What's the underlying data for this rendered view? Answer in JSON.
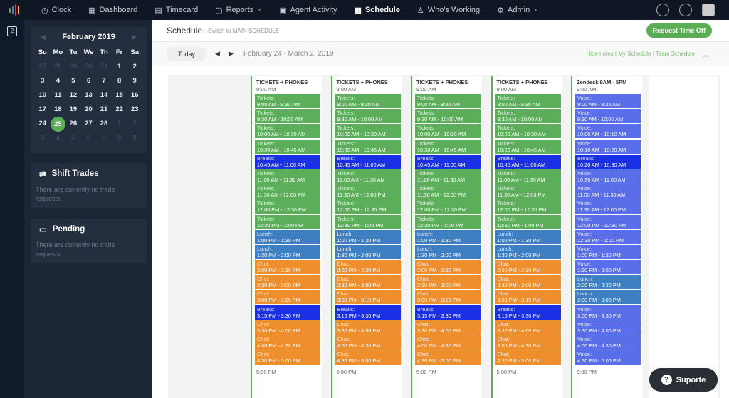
{
  "nav": {
    "items": [
      {
        "label": "Clock",
        "icon": "clock-icon",
        "glyph": "◷"
      },
      {
        "label": "Dashboard",
        "icon": "dashboard-icon",
        "glyph": "▦"
      },
      {
        "label": "Timecard",
        "icon": "timecard-icon",
        "glyph": "▤"
      },
      {
        "label": "Reports",
        "icon": "folder-icon",
        "glyph": "▢",
        "caret": true
      },
      {
        "label": "Agent Activity",
        "icon": "activity-icon",
        "glyph": "▣"
      },
      {
        "label": "Schedule",
        "icon": "calendar-icon",
        "glyph": "▩",
        "active": true
      },
      {
        "label": "Who's Working",
        "icon": "users-icon",
        "glyph": "♙"
      },
      {
        "label": "Admin",
        "icon": "gear-icon",
        "glyph": "⚙",
        "caret": true
      }
    ]
  },
  "calendar": {
    "month": "February 2019",
    "dow": [
      "Su",
      "Mo",
      "Tu",
      "We",
      "Th",
      "Fr",
      "Sa"
    ],
    "days": [
      [
        "27",
        1
      ],
      [
        "28",
        1
      ],
      [
        "29",
        1
      ],
      [
        "30",
        1
      ],
      [
        "31",
        1
      ],
      [
        "1",
        0
      ],
      [
        "2",
        0
      ],
      [
        "3",
        0
      ],
      [
        "4",
        0
      ],
      [
        "5",
        0
      ],
      [
        "6",
        0
      ],
      [
        "7",
        0
      ],
      [
        "8",
        0
      ],
      [
        "9",
        0
      ],
      [
        "10",
        0
      ],
      [
        "11",
        0
      ],
      [
        "12",
        0
      ],
      [
        "13",
        0
      ],
      [
        "14",
        0
      ],
      [
        "15",
        0
      ],
      [
        "16",
        0
      ],
      [
        "17",
        0
      ],
      [
        "18",
        0
      ],
      [
        "19",
        0
      ],
      [
        "20",
        0
      ],
      [
        "21",
        0
      ],
      [
        "22",
        0
      ],
      [
        "23",
        0
      ],
      [
        "24",
        0
      ],
      [
        "25",
        2
      ],
      [
        "26",
        0
      ],
      [
        "27",
        0
      ],
      [
        "28",
        0
      ],
      [
        "1",
        1
      ],
      [
        "2",
        1
      ],
      [
        "3",
        1
      ],
      [
        "4",
        1
      ],
      [
        "5",
        1
      ],
      [
        "6",
        1
      ],
      [
        "7",
        1
      ],
      [
        "8",
        1
      ],
      [
        "9",
        1
      ]
    ]
  },
  "shift_trades": {
    "title": "Shift Trades",
    "empty": "There are currently no trade requests."
  },
  "pending": {
    "title": "Pending",
    "empty": "There are currently no trade requests."
  },
  "header": {
    "title": "Schedule",
    "switch": "Switch to MAIN SCHEDULE",
    "request": "Request Time Off"
  },
  "toolbar": {
    "today": "Today",
    "range": "February 24 - March 2, 2019",
    "links": "Hide notes | My Schedule | Team Schedule"
  },
  "colors": {
    "Tickets": "#5cae5a",
    "Breaks": "#1b30e6",
    "Lunch": "#3d7fc0",
    "Chat": "#ee8e2d",
    "Voice": "#5a6ee9",
    "accent": "#5aae55"
  },
  "columns": [
    {
      "title": "TICKETS + PHONES",
      "start": "9:00 AM",
      "end": "5:00 PM",
      "blocks": "A"
    },
    {
      "title": "TICKETS + PHONES",
      "start": "9:00 AM",
      "end": "5:00 PM",
      "blocks": "A"
    },
    {
      "title": "TICKETS + PHONES",
      "start": "9:00 AM",
      "end": "5:00 PM",
      "blocks": "A"
    },
    {
      "title": "TICKETS + PHONES",
      "start": "9:00 AM",
      "end": "5:00 PM",
      "blocks": "A"
    },
    {
      "title": "Zendesk 9AM - 5PM",
      "start": "9:00 AM",
      "end": "5:00 PM",
      "blocks": "B"
    }
  ],
  "block_sets": {
    "A": [
      [
        "Tickets:",
        "9:00 AM - 9:30 AM"
      ],
      [
        "Tickets:",
        "9:30 AM - 10:00 AM"
      ],
      [
        "Tickets:",
        "10:00 AM - 10:30 AM"
      ],
      [
        "Tickets:",
        "10:30 AM - 10:45 AM"
      ],
      [
        "Breaks:",
        "10:45 AM - 11:00 AM"
      ],
      [
        "Tickets:",
        "11:00 AM - 11:30 AM"
      ],
      [
        "Tickets:",
        "11:30 AM - 12:00 PM"
      ],
      [
        "Tickets:",
        "12:00 PM - 12:30 PM"
      ],
      [
        "Tickets:",
        "12:30 PM - 1:00 PM"
      ],
      [
        "Lunch:",
        "1:00 PM - 1:30 PM"
      ],
      [
        "Lunch:",
        "1:30 PM - 2:00 PM"
      ],
      [
        "Chat:",
        "2:00 PM - 2:30 PM"
      ],
      [
        "Chat:",
        "2:30 PM - 3:00 PM"
      ],
      [
        "Chat:",
        "3:00 PM - 3:15 PM"
      ],
      [
        "Breaks:",
        "3:15 PM - 3:30 PM"
      ],
      [
        "Chat:",
        "3:30 PM - 4:00 PM"
      ],
      [
        "Chat:",
        "4:00 PM - 4:30 PM"
      ],
      [
        "Chat:",
        "4:30 PM - 5:00 PM"
      ]
    ],
    "B": [
      [
        "Voice:",
        "9:00 AM - 9:30 AM"
      ],
      [
        "Voice:",
        "9:30 AM - 10:00 AM"
      ],
      [
        "Voice:",
        "10:00 AM - 10:10 AM"
      ],
      [
        "Voice:",
        "10:10 AM - 10:20 AM"
      ],
      [
        "Breaks:",
        "10:20 AM - 10:30 AM"
      ],
      [
        "Voice:",
        "10:30 AM - 11:00 AM"
      ],
      [
        "Voice:",
        "11:00 AM - 11:30 AM"
      ],
      [
        "Voice:",
        "11:30 AM - 12:00 PM"
      ],
      [
        "Voice:",
        "12:00 PM - 12:30 PM"
      ],
      [
        "Voice:",
        "12:30 PM - 1:00 PM"
      ],
      [
        "Voice:",
        "1:00 PM - 1:30 PM"
      ],
      [
        "Voice:",
        "1:30 PM - 2:00 PM"
      ],
      [
        "Lunch:",
        "2:00 PM - 2:30 PM"
      ],
      [
        "Lunch:",
        "2:30 PM - 3:00 PM"
      ],
      [
        "Voice:",
        "3:00 PM - 3:30 PM"
      ],
      [
        "Voice:",
        "3:30 PM - 4:00 PM"
      ],
      [
        "Voice:",
        "4:00 PM - 4:30 PM"
      ],
      [
        "Voice:",
        "4:30 PM - 5:00 PM"
      ]
    ]
  },
  "support": {
    "label": "Suporte"
  }
}
